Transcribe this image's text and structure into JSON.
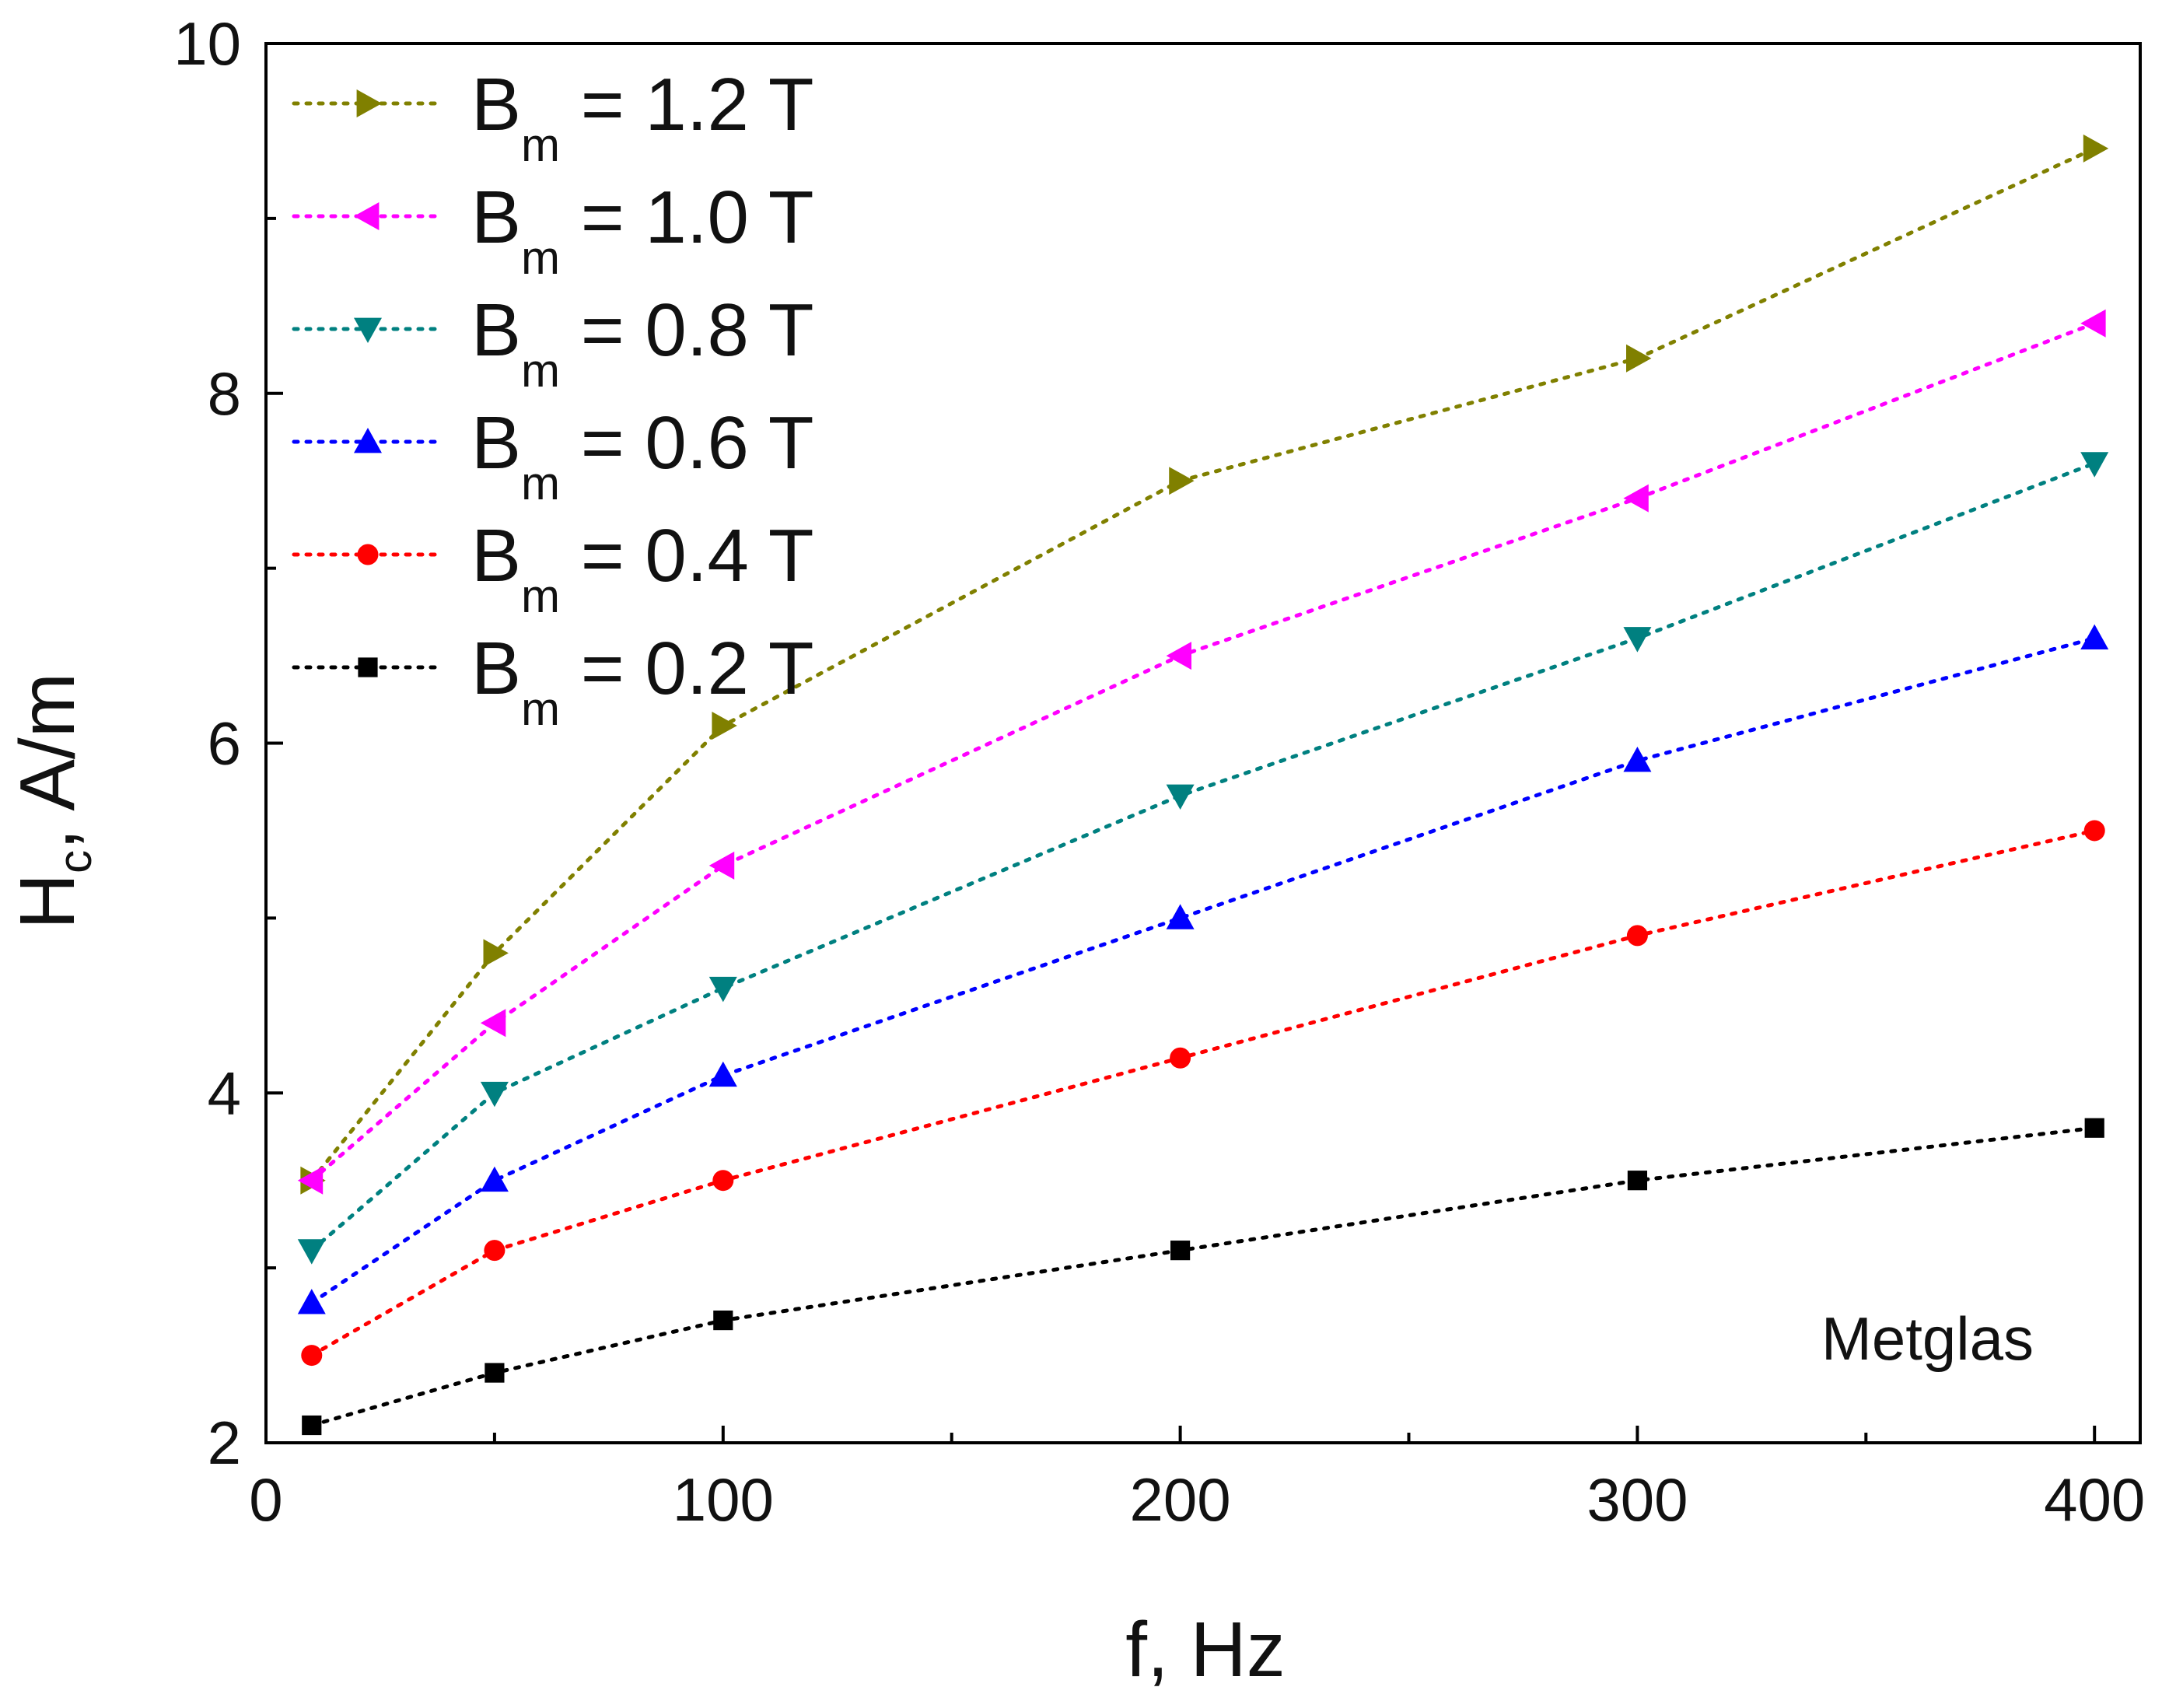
{
  "chart_data": {
    "type": "line",
    "title": "",
    "xlabel": "f, Hz",
    "ylabel": "H_c, A/m",
    "ylabel_main": "H",
    "ylabel_sub": "c",
    "ylabel_rest": ", A/m",
    "xlim": [
      0,
      410
    ],
    "ylim": [
      2,
      10
    ],
    "xticks": [
      0,
      100,
      200,
      300,
      400
    ],
    "yticks": [
      2,
      4,
      6,
      8,
      10
    ],
    "grid": false,
    "legend_position": "top-left",
    "annotation": "Metglas",
    "x": [
      10,
      50,
      100,
      200,
      300,
      400
    ],
    "series": [
      {
        "name": "B_m = 1.2 T",
        "sym": "B",
        "sub": "m",
        "rest": " = 1.2 T",
        "color": "#808000",
        "marker": "triangle-right",
        "values": [
          3.5,
          4.8,
          6.1,
          7.5,
          8.2,
          9.4
        ]
      },
      {
        "name": "B_m = 1.0 T",
        "sym": "B",
        "sub": "m",
        "rest": " = 1.0 T",
        "color": "#ff00ff",
        "marker": "triangle-left",
        "values": [
          3.5,
          4.4,
          5.3,
          6.5,
          7.4,
          8.4
        ]
      },
      {
        "name": "B_m = 0.8 T",
        "sym": "B",
        "sub": "m",
        "rest": " = 0.8 T",
        "color": "#008080",
        "marker": "triangle-down",
        "values": [
          3.1,
          4.0,
          4.6,
          5.7,
          6.6,
          7.6
        ]
      },
      {
        "name": "B_m = 0.6 T",
        "sym": "B",
        "sub": "m",
        "rest": " = 0.6 T",
        "color": "#0000ff",
        "marker": "triangle-up",
        "values": [
          2.8,
          3.5,
          4.1,
          5.0,
          5.9,
          6.6
        ]
      },
      {
        "name": "B_m = 0.4 T",
        "sym": "B",
        "sub": "m",
        "rest": " = 0.4 T",
        "color": "#ff0000",
        "marker": "circle",
        "values": [
          2.5,
          3.1,
          3.5,
          4.2,
          4.9,
          5.5
        ]
      },
      {
        "name": "B_m = 0.2 T",
        "sym": "B",
        "sub": "m",
        "rest": " = 0.2 T",
        "color": "#000000",
        "marker": "square",
        "values": [
          2.1,
          2.4,
          2.7,
          3.1,
          3.5,
          3.8
        ]
      }
    ]
  }
}
